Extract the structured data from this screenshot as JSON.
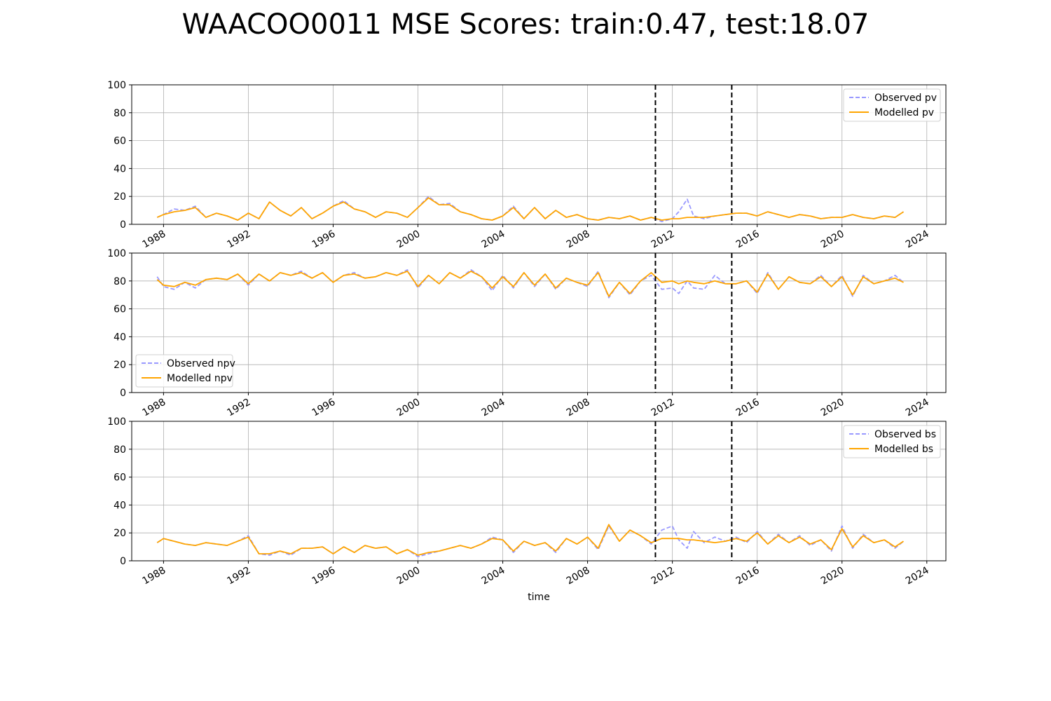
{
  "figure": {
    "title": "WAACOO0011 MSE Scores: train:0.47, test:18.07",
    "xlabel": "time"
  },
  "colors": {
    "observed": "#9999ff",
    "modelled": "#ffa500",
    "grid": "#b0b0b0",
    "vline": "#000000"
  },
  "chart_data": [
    {
      "type": "line",
      "panel": "pv",
      "xlabel": "",
      "ylabel": "",
      "xlim": [
        1986.5,
        2024.9
      ],
      "ylim": [
        0,
        100
      ],
      "yticks": [
        0,
        20,
        40,
        60,
        80,
        100
      ],
      "xticks": [
        "1988",
        "1992",
        "1996",
        "2000",
        "2004",
        "2008",
        "2012",
        "2016",
        "2020",
        "2024"
      ],
      "vlines": [
        2011.2,
        2014.8
      ],
      "grid": true,
      "legend": "top-right",
      "series": [
        {
          "name": "Observed pv",
          "style": "dashed",
          "x": [
            1987.7,
            1988.0,
            1988.5,
            1989.0,
            1989.5,
            1990.0,
            1990.5,
            1991.0,
            1991.5,
            1992.0,
            1992.5,
            1993.0,
            1993.5,
            1994.0,
            1994.5,
            1995.0,
            1995.5,
            1996.0,
            1996.5,
            1997.0,
            1997.5,
            1998.0,
            1998.5,
            1999.0,
            1999.5,
            2000.0,
            2000.5,
            2001.0,
            2001.5,
            2002.0,
            2002.5,
            2003.0,
            2003.5,
            2004.0,
            2004.5,
            2005.0,
            2005.5,
            2006.0,
            2006.5,
            2007.0,
            2007.5,
            2008.0,
            2008.5,
            2009.0,
            2009.5,
            2010.0,
            2010.5,
            2011.0,
            2011.5,
            2012.0,
            2012.3,
            2012.7,
            2013.0,
            2013.5,
            2014.0,
            2014.5,
            2015.0,
            2015.5,
            2016.0,
            2016.5,
            2017.0,
            2017.5,
            2018.0,
            2018.5,
            2019.0,
            2019.5,
            2020.0,
            2020.5,
            2021.0,
            2021.5,
            2022.0,
            2022.5,
            2022.9
          ],
          "y": [
            5,
            7,
            11,
            10,
            13,
            5,
            8,
            6,
            3,
            8,
            4,
            16,
            10,
            6,
            12,
            4,
            8,
            13,
            17,
            11,
            9,
            5,
            9,
            8,
            5,
            12,
            20,
            14,
            15,
            9,
            7,
            4,
            3,
            6,
            13,
            4,
            12,
            4,
            10,
            5,
            7,
            4,
            3,
            5,
            4,
            6,
            3,
            5,
            2,
            4,
            9,
            18,
            6,
            4,
            6,
            7,
            8,
            8,
            6,
            9,
            7,
            5,
            7,
            6,
            4,
            5,
            5,
            7,
            5,
            4,
            6,
            5,
            9
          ]
        },
        {
          "name": "Modelled pv",
          "style": "solid",
          "x": [
            1987.7,
            1988.0,
            1988.5,
            1989.0,
            1989.5,
            1990.0,
            1990.5,
            1991.0,
            1991.5,
            1992.0,
            1992.5,
            1993.0,
            1993.5,
            1994.0,
            1994.5,
            1995.0,
            1995.5,
            1996.0,
            1996.5,
            1997.0,
            1997.5,
            1998.0,
            1998.5,
            1999.0,
            1999.5,
            2000.0,
            2000.5,
            2001.0,
            2001.5,
            2002.0,
            2002.5,
            2003.0,
            2003.5,
            2004.0,
            2004.5,
            2005.0,
            2005.5,
            2006.0,
            2006.5,
            2007.0,
            2007.5,
            2008.0,
            2008.5,
            2009.0,
            2009.5,
            2010.0,
            2010.5,
            2011.0,
            2011.5,
            2012.0,
            2012.3,
            2012.7,
            2013.0,
            2013.5,
            2014.0,
            2014.5,
            2015.0,
            2015.5,
            2016.0,
            2016.5,
            2017.0,
            2017.5,
            2018.0,
            2018.5,
            2019.0,
            2019.5,
            2020.0,
            2020.5,
            2021.0,
            2021.5,
            2022.0,
            2022.5,
            2022.9
          ],
          "y": [
            5,
            7,
            9,
            10,
            12,
            5,
            8,
            6,
            3,
            8,
            4,
            16,
            10,
            6,
            12,
            4,
            8,
            13,
            16,
            11,
            9,
            5,
            9,
            8,
            5,
            12,
            19,
            14,
            14,
            9,
            7,
            4,
            3,
            6,
            12,
            4,
            12,
            4,
            10,
            5,
            7,
            4,
            3,
            5,
            4,
            6,
            3,
            5,
            3,
            4,
            4,
            5,
            5,
            5,
            6,
            7,
            8,
            8,
            6,
            9,
            7,
            5,
            7,
            6,
            4,
            5,
            5,
            7,
            5,
            4,
            6,
            5,
            9
          ]
        }
      ]
    },
    {
      "type": "line",
      "panel": "npv",
      "xlabel": "",
      "ylabel": "",
      "xlim": [
        1986.5,
        2024.9
      ],
      "ylim": [
        0,
        100
      ],
      "yticks": [
        0,
        20,
        40,
        60,
        80,
        100
      ],
      "xticks": [
        "1988",
        "1992",
        "1996",
        "2000",
        "2004",
        "2008",
        "2012",
        "2016",
        "2020",
        "2024"
      ],
      "vlines": [
        2011.2,
        2014.8
      ],
      "grid": true,
      "legend": "bottom-left",
      "series": [
        {
          "name": "Observed npv",
          "style": "dashed",
          "x": [
            1987.7,
            1988.0,
            1988.5,
            1989.0,
            1989.5,
            1990.0,
            1990.5,
            1991.0,
            1991.5,
            1992.0,
            1992.5,
            1993.0,
            1993.5,
            1994.0,
            1994.5,
            1995.0,
            1995.5,
            1996.0,
            1996.5,
            1997.0,
            1997.5,
            1998.0,
            1998.5,
            1999.0,
            1999.5,
            2000.0,
            2000.5,
            2001.0,
            2001.5,
            2002.0,
            2002.5,
            2003.0,
            2003.5,
            2004.0,
            2004.5,
            2005.0,
            2005.5,
            2006.0,
            2006.5,
            2007.0,
            2007.5,
            2008.0,
            2008.5,
            2009.0,
            2009.5,
            2010.0,
            2010.5,
            2011.0,
            2011.5,
            2012.0,
            2012.3,
            2012.7,
            2013.0,
            2013.5,
            2014.0,
            2014.5,
            2015.0,
            2015.5,
            2016.0,
            2016.5,
            2017.0,
            2017.5,
            2018.0,
            2018.5,
            2019.0,
            2019.5,
            2020.0,
            2020.5,
            2021.0,
            2021.5,
            2022.0,
            2022.5,
            2022.9
          ],
          "y": [
            83,
            76,
            74,
            79,
            75,
            81,
            82,
            81,
            85,
            77,
            85,
            80,
            86,
            84,
            87,
            82,
            86,
            79,
            84,
            86,
            82,
            83,
            86,
            84,
            88,
            75,
            84,
            78,
            86,
            82,
            88,
            83,
            73,
            84,
            75,
            86,
            76,
            85,
            74,
            82,
            79,
            76,
            87,
            68,
            79,
            70,
            80,
            84,
            74,
            75,
            71,
            80,
            75,
            74,
            84,
            78,
            78,
            80,
            71,
            86,
            74,
            83,
            79,
            78,
            84,
            76,
            84,
            69,
            84,
            78,
            80,
            84,
            79
          ]
        },
        {
          "name": "Modelled npv",
          "style": "solid",
          "x": [
            1987.7,
            1988.0,
            1988.5,
            1989.0,
            1989.5,
            1990.0,
            1990.5,
            1991.0,
            1991.5,
            1992.0,
            1992.5,
            1993.0,
            1993.5,
            1994.0,
            1994.5,
            1995.0,
            1995.5,
            1996.0,
            1996.5,
            1997.0,
            1997.5,
            1998.0,
            1998.5,
            1999.0,
            1999.5,
            2000.0,
            2000.5,
            2001.0,
            2001.5,
            2002.0,
            2002.5,
            2003.0,
            2003.5,
            2004.0,
            2004.5,
            2005.0,
            2005.5,
            2006.0,
            2006.5,
            2007.0,
            2007.5,
            2008.0,
            2008.5,
            2009.0,
            2009.5,
            2010.0,
            2010.5,
            2011.0,
            2011.5,
            2012.0,
            2012.3,
            2012.7,
            2013.0,
            2013.5,
            2014.0,
            2014.5,
            2015.0,
            2015.5,
            2016.0,
            2016.5,
            2017.0,
            2017.5,
            2018.0,
            2018.5,
            2019.0,
            2019.5,
            2020.0,
            2020.5,
            2021.0,
            2021.5,
            2022.0,
            2022.5,
            2022.9
          ],
          "y": [
            81,
            77,
            76,
            79,
            77,
            81,
            82,
            81,
            85,
            78,
            85,
            80,
            86,
            84,
            86,
            82,
            86,
            79,
            84,
            85,
            82,
            83,
            86,
            84,
            87,
            76,
            84,
            78,
            86,
            82,
            87,
            83,
            75,
            83,
            76,
            86,
            77,
            85,
            75,
            82,
            79,
            77,
            86,
            69,
            79,
            71,
            80,
            86,
            79,
            80,
            78,
            80,
            79,
            78,
            80,
            78,
            78,
            80,
            72,
            85,
            74,
            83,
            79,
            78,
            83,
            76,
            83,
            70,
            83,
            78,
            80,
            82,
            79
          ]
        }
      ]
    },
    {
      "type": "line",
      "panel": "bs",
      "xlabel": "time",
      "ylabel": "",
      "xlim": [
        1986.5,
        2024.9
      ],
      "ylim": [
        0,
        100
      ],
      "yticks": [
        0,
        20,
        40,
        60,
        80,
        100
      ],
      "xticks": [
        "1988",
        "1992",
        "1996",
        "2000",
        "2004",
        "2008",
        "2012",
        "2016",
        "2020",
        "2024"
      ],
      "vlines": [
        2011.2,
        2014.8
      ],
      "grid": true,
      "legend": "top-right",
      "series": [
        {
          "name": "Observed bs",
          "style": "dashed",
          "x": [
            1987.7,
            1988.0,
            1988.5,
            1989.0,
            1989.5,
            1990.0,
            1990.5,
            1991.0,
            1991.5,
            1992.0,
            1992.5,
            1993.0,
            1993.5,
            1994.0,
            1994.5,
            1995.0,
            1995.5,
            1996.0,
            1996.5,
            1997.0,
            1997.5,
            1998.0,
            1998.5,
            1999.0,
            1999.5,
            2000.0,
            2000.5,
            2001.0,
            2001.5,
            2002.0,
            2002.5,
            2003.0,
            2003.5,
            2004.0,
            2004.5,
            2005.0,
            2005.5,
            2006.0,
            2006.5,
            2007.0,
            2007.5,
            2008.0,
            2008.5,
            2009.0,
            2009.5,
            2010.0,
            2010.5,
            2011.0,
            2011.5,
            2012.0,
            2012.3,
            2012.7,
            2013.0,
            2013.5,
            2014.0,
            2014.5,
            2015.0,
            2015.5,
            2016.0,
            2016.5,
            2017.0,
            2017.5,
            2018.0,
            2018.5,
            2019.0,
            2019.5,
            2020.0,
            2020.5,
            2021.0,
            2021.5,
            2022.0,
            2022.5,
            2022.9
          ],
          "y": [
            13,
            16,
            14,
            12,
            11,
            13,
            12,
            11,
            14,
            18,
            5,
            4,
            7,
            4,
            9,
            9,
            10,
            5,
            10,
            6,
            11,
            9,
            10,
            5,
            8,
            3,
            5,
            7,
            9,
            11,
            9,
            12,
            17,
            15,
            6,
            14,
            11,
            13,
            6,
            16,
            12,
            17,
            8,
            25,
            14,
            22,
            18,
            12,
            22,
            25,
            15,
            9,
            21,
            13,
            17,
            14,
            17,
            13,
            21,
            12,
            19,
            13,
            18,
            11,
            15,
            7,
            25,
            9,
            19,
            13,
            15,
            9,
            14
          ]
        },
        {
          "name": "Modelled bs",
          "style": "solid",
          "x": [
            1987.7,
            1988.0,
            1988.5,
            1989.0,
            1989.5,
            1990.0,
            1990.5,
            1991.0,
            1991.5,
            1992.0,
            1992.5,
            1993.0,
            1993.5,
            1994.0,
            1994.5,
            1995.0,
            1995.5,
            1996.0,
            1996.5,
            1997.0,
            1997.5,
            1998.0,
            1998.5,
            1999.0,
            1999.5,
            2000.0,
            2000.5,
            2001.0,
            2001.5,
            2002.0,
            2002.5,
            2003.0,
            2003.5,
            2004.0,
            2004.5,
            2005.0,
            2005.5,
            2006.0,
            2006.5,
            2007.0,
            2007.5,
            2008.0,
            2008.5,
            2009.0,
            2009.5,
            2010.0,
            2010.5,
            2011.0,
            2011.5,
            2012.0,
            2012.3,
            2012.7,
            2013.0,
            2013.5,
            2014.0,
            2014.5,
            2015.0,
            2015.5,
            2016.0,
            2016.5,
            2017.0,
            2017.5,
            2018.0,
            2018.5,
            2019.0,
            2019.5,
            2020.0,
            2020.5,
            2021.0,
            2021.5,
            2022.0,
            2022.5,
            2022.9
          ],
          "y": [
            13,
            16,
            14,
            12,
            11,
            13,
            12,
            11,
            14,
            17,
            5,
            5,
            7,
            5,
            9,
            9,
            10,
            5,
            10,
            6,
            11,
            9,
            10,
            5,
            8,
            4,
            6,
            7,
            9,
            11,
            9,
            12,
            16,
            15,
            7,
            14,
            11,
            13,
            7,
            16,
            12,
            17,
            9,
            26,
            14,
            22,
            18,
            13,
            16,
            16,
            16,
            15,
            15,
            14,
            13,
            14,
            16,
            14,
            20,
            12,
            18,
            13,
            17,
            12,
            15,
            8,
            23,
            10,
            18,
            13,
            15,
            10,
            14
          ]
        }
      ]
    }
  ]
}
